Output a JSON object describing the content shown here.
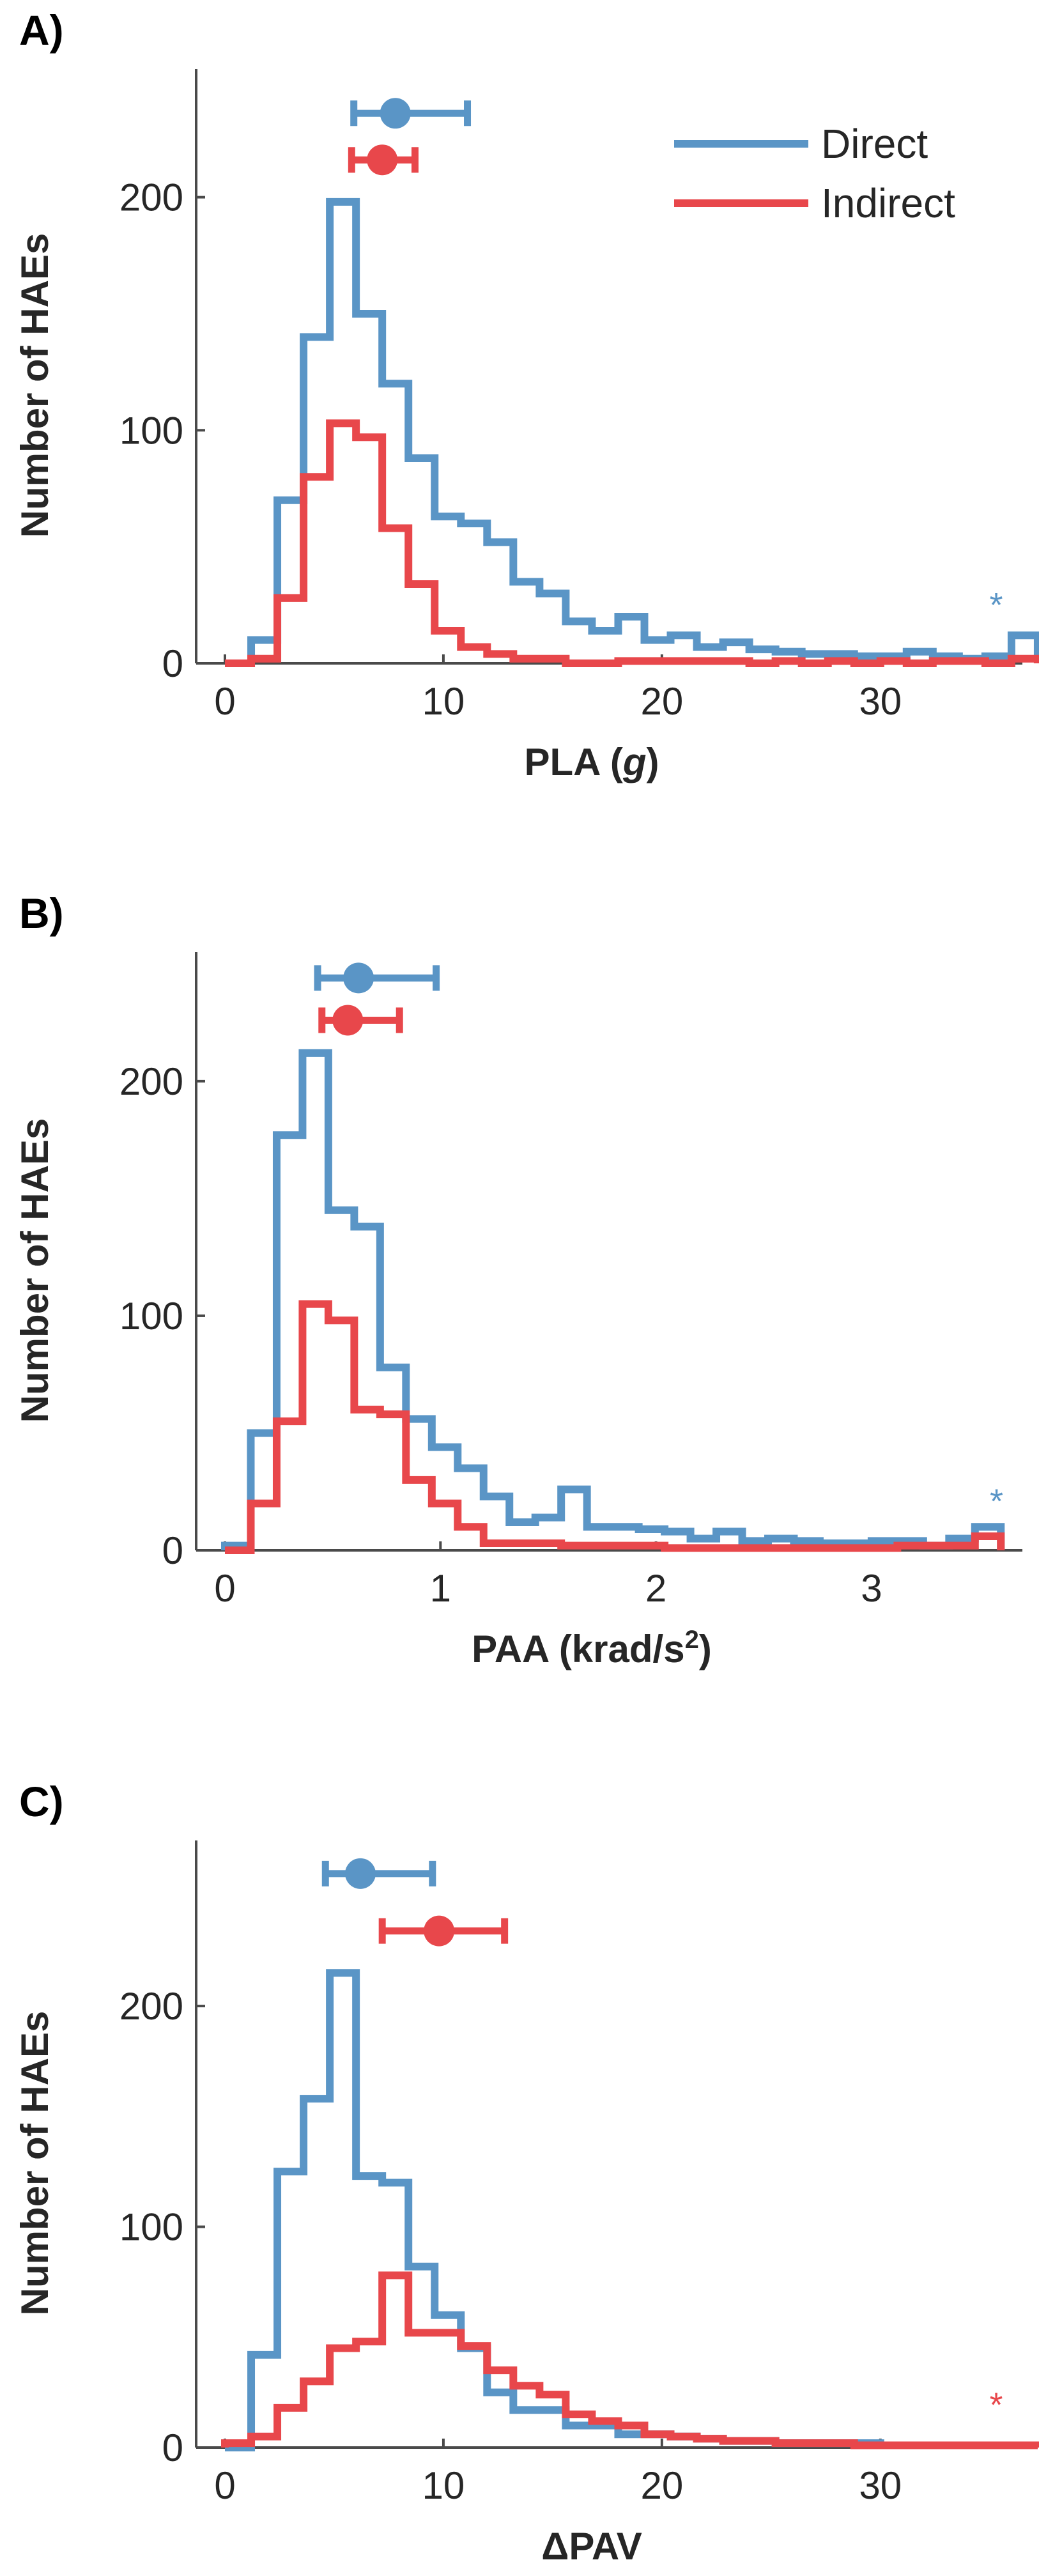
{
  "colors": {
    "direct": "#5a95c6",
    "indirect": "#e8474b",
    "axis": "#4a4a4a"
  },
  "legend": {
    "direct": "Direct",
    "indirect": "Indirect"
  },
  "chart_data": [
    {
      "type": "histogram-step",
      "panel_label": "A)",
      "xlabel_main": "PLA (",
      "xlabel_italic": "g",
      "xlabel_end": ")",
      "ylabel": "Number of HAEs",
      "xlim": [
        0,
        36.5
      ],
      "ylim": [
        0,
        255
      ],
      "xticks": [
        0,
        10,
        20,
        30
      ],
      "xtick_labels": [
        "0",
        "10",
        "20",
        "30"
      ],
      "yticks": [
        0,
        100,
        200
      ],
      "ytick_labels": [
        "0",
        "100",
        "200"
      ],
      "bin_width": 1.2,
      "show_legend": true,
      "series": [
        {
          "name": "Direct",
          "color_key": "direct",
          "counts": [
            0,
            10,
            70,
            140,
            198,
            150,
            120,
            88,
            63,
            60,
            52,
            35,
            30,
            18,
            14,
            20,
            10,
            12,
            7,
            9,
            6,
            5,
            4,
            4,
            3,
            3,
            5,
            3,
            2,
            3,
            12
          ],
          "marker_mean": 7.8,
          "marker_err": [
            5.9,
            11.1
          ],
          "marker_y": 236,
          "asterisk": "*",
          "asterisk_x": 35.3,
          "asterisk_y": 20
        },
        {
          "name": "Indirect",
          "color_key": "indirect",
          "counts": [
            0,
            2,
            28,
            80,
            103,
            97,
            58,
            34,
            14,
            7,
            4,
            2,
            2,
            0,
            0,
            1,
            1,
            1,
            1,
            1,
            0,
            1,
            0,
            1,
            0,
            1,
            0,
            1,
            1,
            0,
            2
          ],
          "marker_mean": 7.2,
          "marker_err": [
            5.8,
            8.7
          ],
          "marker_y": 216
        }
      ]
    },
    {
      "type": "histogram-step",
      "panel_label": "B)",
      "xlabel_main": "PAA (krad/s",
      "xlabel_sup": "2",
      "xlabel_end": ")",
      "ylabel": "Number of HAEs",
      "xlim": [
        0,
        3.7
      ],
      "ylim": [
        0,
        255
      ],
      "xticks": [
        0,
        1,
        2,
        3
      ],
      "xtick_labels": [
        "0",
        "1",
        "2",
        "3"
      ],
      "yticks": [
        0,
        100,
        200
      ],
      "ytick_labels": [
        "0",
        "100",
        "200"
      ],
      "bin_width": 0.12,
      "show_legend": false,
      "series": [
        {
          "name": "Direct",
          "color_key": "direct",
          "counts": [
            2,
            50,
            177,
            212,
            145,
            138,
            78,
            56,
            44,
            35,
            23,
            12,
            14,
            26,
            10,
            10,
            9,
            8,
            5,
            8,
            4,
            5,
            4,
            3,
            3,
            4,
            4,
            2,
            5,
            10
          ],
          "marker_mean": 0.62,
          "marker_err": [
            0.43,
            0.98
          ],
          "marker_y": 244,
          "asterisk": "*",
          "asterisk_x": 3.58,
          "asterisk_y": 16
        },
        {
          "name": "Indirect",
          "color_key": "indirect",
          "counts": [
            0,
            20,
            55,
            105,
            98,
            60,
            58,
            30,
            20,
            10,
            3,
            3,
            3,
            2,
            2,
            2,
            2,
            1,
            1,
            1,
            1,
            1,
            1,
            1,
            1,
            1,
            2,
            2,
            2,
            6
          ],
          "marker_mean": 0.57,
          "marker_err": [
            0.45,
            0.81
          ],
          "marker_y": 226
        }
      ]
    },
    {
      "type": "histogram-step",
      "panel_label": "C)",
      "xlabel_main": "ΔPAV",
      "ylabel": "Number of HAEs",
      "xlim": [
        0,
        36.5
      ],
      "ylim": [
        0,
        275
      ],
      "xticks": [
        0,
        10,
        20,
        30
      ],
      "xtick_labels": [
        "0",
        "10",
        "20",
        "30"
      ],
      "yticks": [
        0,
        100,
        200
      ],
      "ytick_labels": [
        "0",
        "100",
        "200"
      ],
      "bin_width": 1.2,
      "show_legend": false,
      "series": [
        {
          "name": "Direct",
          "color_key": "direct",
          "counts": [
            0,
            42,
            125,
            158,
            215,
            123,
            120,
            82,
            60,
            45,
            25,
            17,
            17,
            10,
            10,
            6,
            6,
            5,
            4,
            3,
            3,
            2,
            2,
            2,
            2,
            1,
            1,
            1,
            1,
            1,
            1
          ],
          "marker_mean": 6.2,
          "marker_err": [
            4.6,
            9.5
          ],
          "marker_y": 260
        },
        {
          "name": "Indirect",
          "color_key": "indirect",
          "counts": [
            2,
            5,
            18,
            30,
            45,
            48,
            78,
            52,
            52,
            46,
            35,
            28,
            24,
            15,
            12,
            10,
            6,
            5,
            4,
            3,
            3,
            2,
            2,
            2,
            1,
            1,
            1,
            1,
            1,
            1,
            1
          ],
          "marker_mean": 9.8,
          "marker_err": [
            7.2,
            12.8
          ],
          "marker_y": 234,
          "asterisk": "*",
          "asterisk_x": 35.3,
          "asterisk_y": 14
        }
      ]
    }
  ]
}
